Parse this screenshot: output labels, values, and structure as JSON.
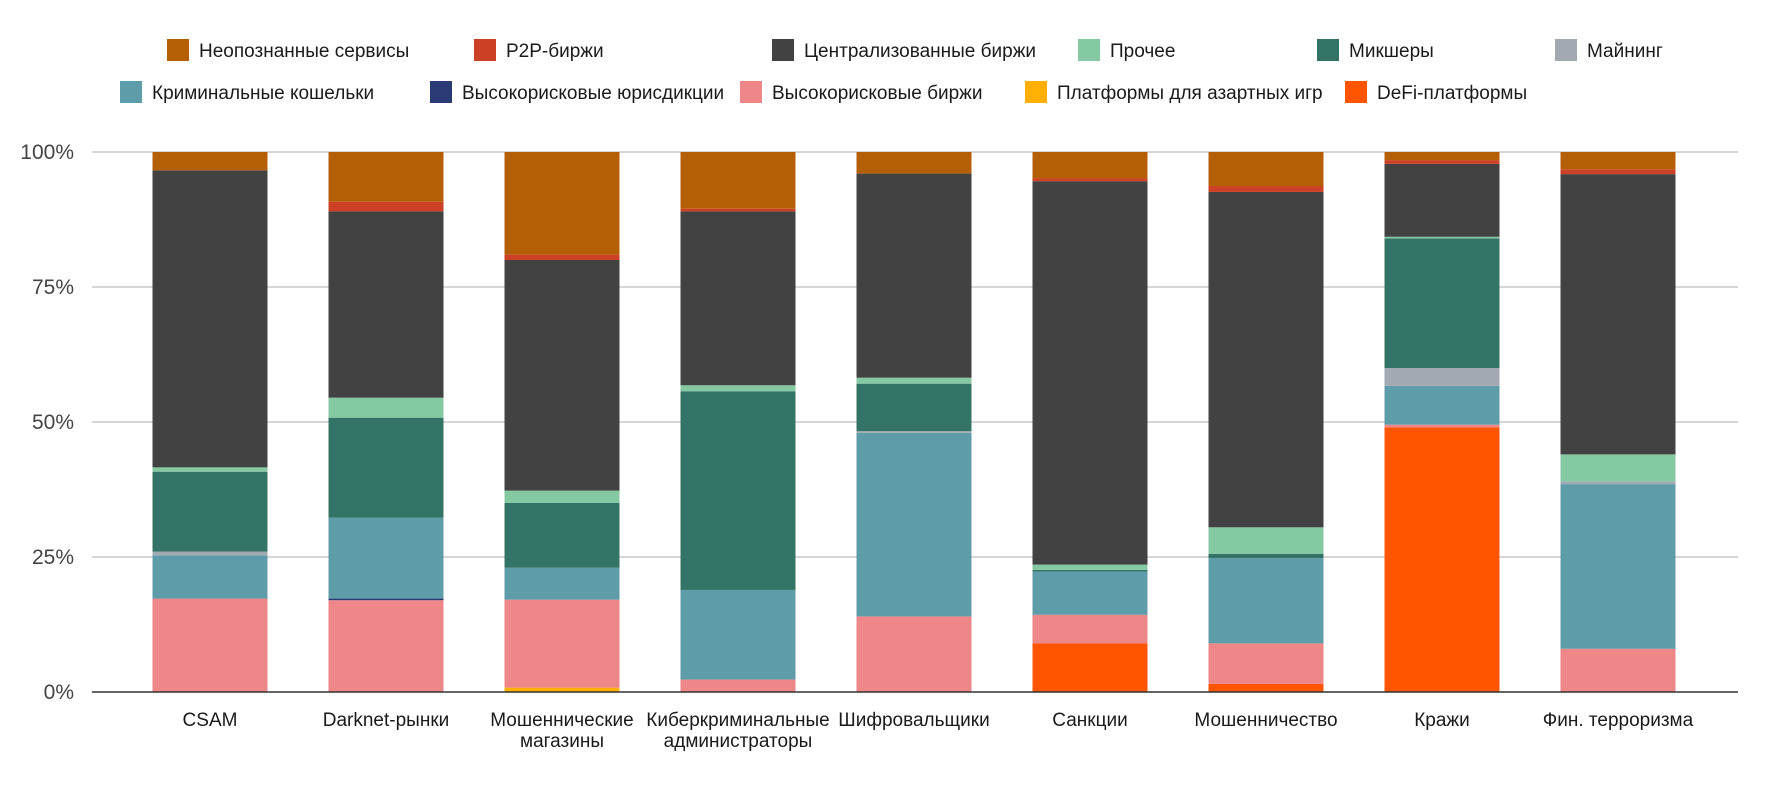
{
  "chart_data": {
    "type": "bar",
    "stacked": true,
    "percent": true,
    "ylim": [
      0,
      100
    ],
    "yticks": [
      "0%",
      "25%",
      "50%",
      "75%",
      "100%"
    ],
    "grid": true,
    "legend_position": "top",
    "categories": [
      [
        "CSAM"
      ],
      [
        "Darknet-рынки"
      ],
      [
        "Мошеннические",
        "магазины"
      ],
      [
        "Киберкриминальные",
        "администраторы"
      ],
      [
        "Шифровальщики"
      ],
      [
        "Санкции"
      ],
      [
        "Мошенничество"
      ],
      [
        "Кражи"
      ],
      [
        "Фин. терроризма"
      ]
    ],
    "series": [
      {
        "name": "DeFi-платформы",
        "color": "#FF5500",
        "values": [
          0,
          0,
          0,
          0,
          0,
          9,
          1.5,
          49,
          0
        ]
      },
      {
        "name": "Платформы для азартных игр",
        "color": "#FFB000",
        "values": [
          0,
          0,
          0.8,
          0,
          0,
          0,
          0,
          0,
          0
        ]
      },
      {
        "name": "Высокорисковые биржи",
        "color": "#EF8687",
        "values": [
          17.3,
          17,
          16.3,
          2.3,
          14,
          5.3,
          7.5,
          0.5,
          8
        ]
      },
      {
        "name": "Высокорисковые юрисдикции",
        "color": "#2A3A75",
        "values": [
          0,
          0.3,
          0,
          0,
          0,
          0,
          0,
          0,
          0
        ]
      },
      {
        "name": "Криминальные кошельки",
        "color": "#5F9CAA",
        "values": [
          8,
          15,
          5.9,
          16.6,
          34,
          8,
          15.8,
          7.2,
          30.5
        ]
      },
      {
        "name": "Майнинг",
        "color": "#A3A9B0",
        "values": [
          0.7,
          0,
          0,
          0,
          0.3,
          0,
          0,
          3.3,
          0.5
        ]
      },
      {
        "name": "Микшеры",
        "color": "#347466",
        "values": [
          14.8,
          18.5,
          12,
          36.8,
          8.8,
          0.3,
          0.8,
          24,
          0
        ]
      },
      {
        "name": "Прочее",
        "color": "#85C9A3",
        "values": [
          0.8,
          3.7,
          2.3,
          1.1,
          1.1,
          1.0,
          4.9,
          0.3,
          5
        ]
      },
      {
        "name": "Централизованные биржи",
        "color": "#424242",
        "values": [
          55,
          34.5,
          42.7,
          32.2,
          37.8,
          71,
          62.1,
          13.5,
          51.9
        ]
      },
      {
        "name": "P2P-биржи",
        "color": "#CC4125",
        "values": [
          0,
          1.8,
          1,
          0.5,
          0,
          0.5,
          1.1,
          0.7,
          0.9
        ]
      },
      {
        "name": "Неопознанные сервисы",
        "color": "#B45F06",
        "values": [
          3.4,
          9.2,
          19,
          10.5,
          4,
          4.9,
          6.3,
          1.5,
          3.2
        ]
      }
    ],
    "legend_rows": [
      [
        "Неопознанные сервисы",
        "P2P-биржи",
        "Централизованные биржи",
        "Прочее",
        "Микшеры",
        "Майнинг"
      ],
      [
        "Криминальные кошельки",
        "Высокорисковые юрисдикции",
        "Высокорисковые биржи",
        "Платформы для азартных игр",
        "DeFi-платформы"
      ]
    ]
  }
}
